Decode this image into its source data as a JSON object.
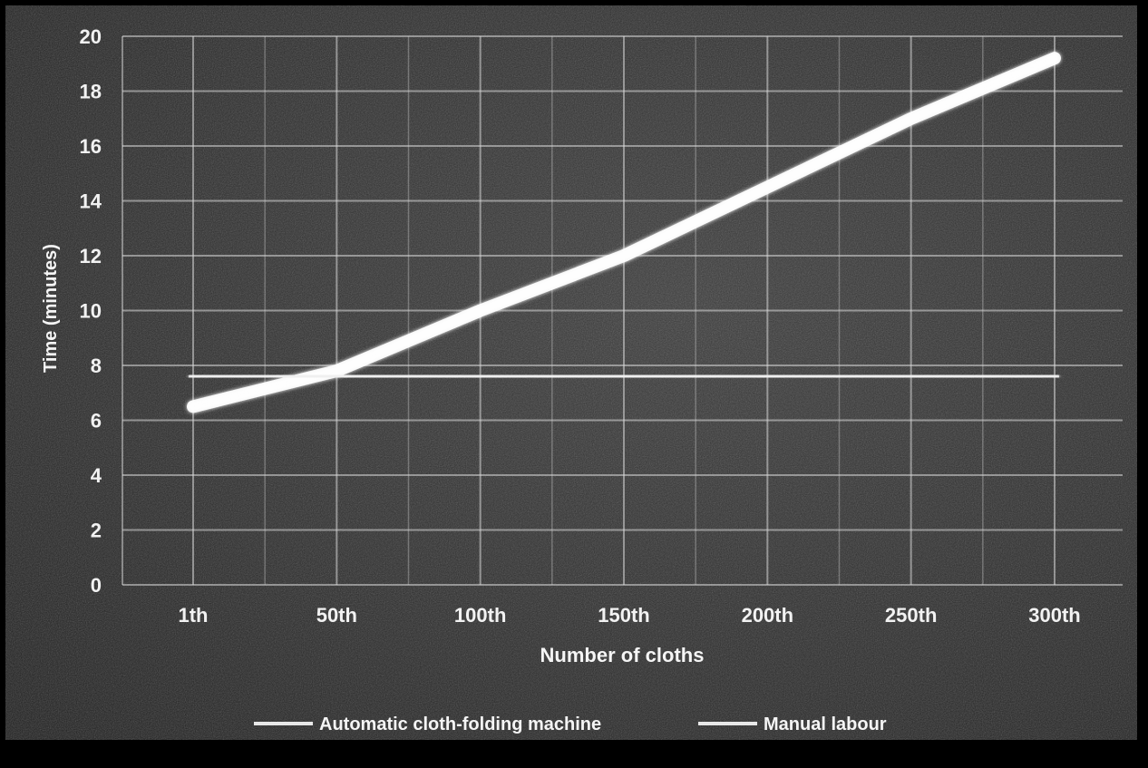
{
  "chart_data": {
    "type": "line",
    "title": "",
    "xlabel": "Number of cloths",
    "ylabel": "Time (minutes)",
    "categories": [
      "1th",
      "50th",
      "100th",
      "150th",
      "200th",
      "250th",
      "300th"
    ],
    "ylim": [
      0,
      20
    ],
    "yticks": [
      0,
      2,
      4,
      6,
      8,
      10,
      12,
      14,
      16,
      18,
      20
    ],
    "grid": true,
    "legend_position": "bottom",
    "series": [
      {
        "name": "Automatic cloth-folding machine",
        "color": "#ffffff",
        "values": [
          6.5,
          7.8,
          10.0,
          12.0,
          14.5,
          17.0,
          19.2
        ]
      },
      {
        "name": "Manual labour",
        "color": "#f0f0f0",
        "values": [
          7.6,
          7.6,
          7.6,
          7.6,
          7.6,
          7.6,
          7.6
        ]
      }
    ]
  }
}
